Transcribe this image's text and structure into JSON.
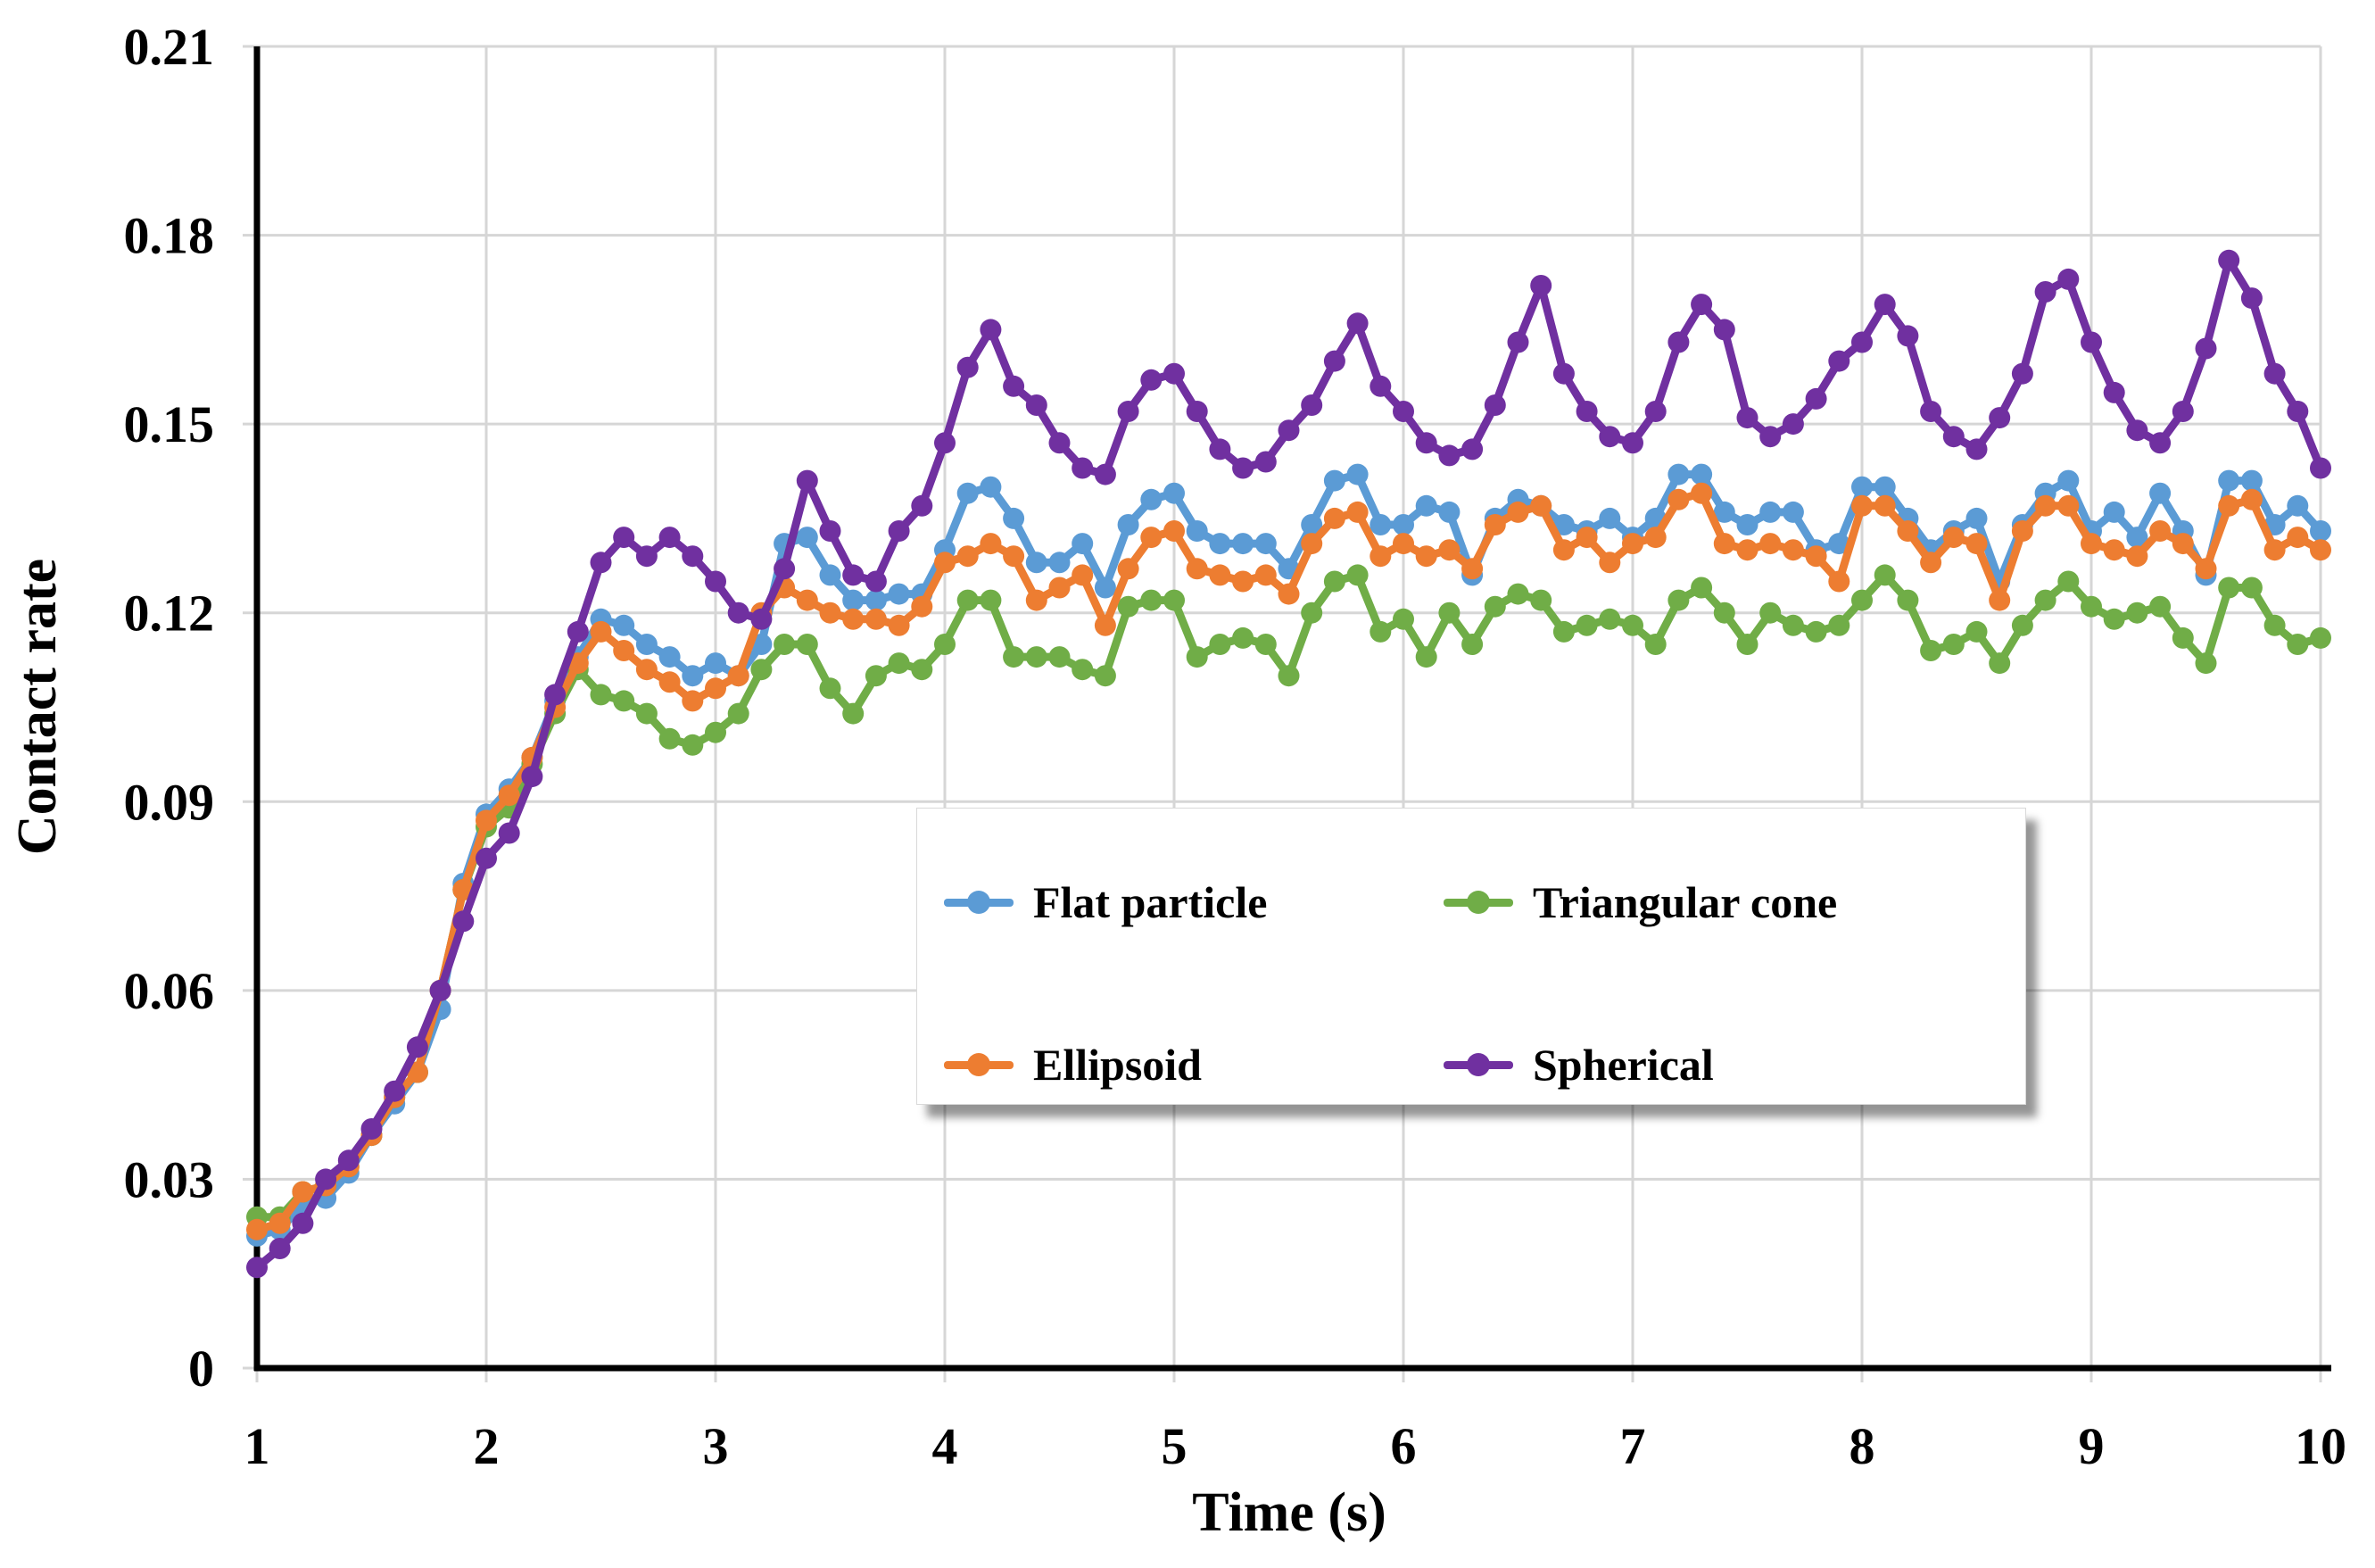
{
  "chart_data": {
    "type": "line",
    "title": "",
    "xlabel": "Time (s)",
    "ylabel": "Contact rate",
    "x_start": 1.0,
    "x_step": 0.1,
    "xlim": [
      1,
      10
    ],
    "ylim": [
      0,
      0.21
    ],
    "grid": true,
    "x_ticks": [
      "1",
      "2",
      "3",
      "4",
      "5",
      "6",
      "7",
      "8",
      "9",
      "10"
    ],
    "x_tick_values": [
      1,
      2,
      3,
      4,
      5,
      6,
      7,
      8,
      9,
      10
    ],
    "y_ticks": [
      "0",
      "0.03",
      "0.06",
      "0.09",
      "0.12",
      "0.15",
      "0.18",
      "0.21"
    ],
    "y_tick_values": [
      0,
      0.03,
      0.06,
      0.09,
      0.12,
      0.15,
      0.18,
      0.21
    ],
    "legend_position": "center-box",
    "colors": {
      "flat_particle": "#5B9BD5",
      "triangular_cone": "#70AD47",
      "ellipsoid": "#ED7D31",
      "spherical": "#7030A0",
      "gridline": "#D6D6D6",
      "axis": "#000000"
    },
    "series": [
      {
        "name": "Flat particle",
        "color": "#5B9BD5",
        "marker": "circle",
        "values": [
          0.021,
          0.022,
          0.026,
          0.027,
          0.031,
          0.037,
          0.042,
          0.047,
          0.057,
          0.077,
          0.088,
          0.092,
          0.097,
          0.106,
          0.113,
          0.119,
          0.118,
          0.115,
          0.113,
          0.11,
          0.112,
          0.11,
          0.115,
          0.131,
          0.132,
          0.126,
          0.122,
          0.122,
          0.123,
          0.123,
          0.13,
          0.139,
          0.14,
          0.135,
          0.128,
          0.128,
          0.131,
          0.124,
          0.134,
          0.138,
          0.139,
          0.133,
          0.131,
          0.131,
          0.131,
          0.127,
          0.134,
          0.141,
          0.142,
          0.134,
          0.134,
          0.137,
          0.136,
          0.126,
          0.135,
          0.138,
          0.137,
          0.134,
          0.133,
          0.135,
          0.132,
          0.135,
          0.142,
          0.142,
          0.136,
          0.134,
          0.136,
          0.136,
          0.13,
          0.131,
          0.14,
          0.14,
          0.135,
          0.13,
          0.133,
          0.135,
          0.125,
          0.134,
          0.139,
          0.141,
          0.133,
          0.136,
          0.132,
          0.139,
          0.133,
          0.126,
          0.141,
          0.141,
          0.134,
          0.137,
          0.133
        ]
      },
      {
        "name": "Triangular cone",
        "color": "#70AD47",
        "marker": "circle",
        "values": [
          0.024,
          0.024,
          0.028,
          0.029,
          0.032,
          0.037,
          0.043,
          0.047,
          0.06,
          0.076,
          0.086,
          0.089,
          0.096,
          0.104,
          0.111,
          0.107,
          0.106,
          0.104,
          0.1,
          0.099,
          0.101,
          0.104,
          0.111,
          0.115,
          0.115,
          0.108,
          0.104,
          0.11,
          0.112,
          0.111,
          0.115,
          0.122,
          0.122,
          0.113,
          0.113,
          0.113,
          0.111,
          0.11,
          0.121,
          0.122,
          0.122,
          0.113,
          0.115,
          0.116,
          0.115,
          0.11,
          0.12,
          0.125,
          0.126,
          0.117,
          0.119,
          0.113,
          0.12,
          0.115,
          0.121,
          0.123,
          0.122,
          0.117,
          0.118,
          0.119,
          0.118,
          0.115,
          0.122,
          0.124,
          0.12,
          0.115,
          0.12,
          0.118,
          0.117,
          0.118,
          0.122,
          0.126,
          0.122,
          0.114,
          0.115,
          0.117,
          0.112,
          0.118,
          0.122,
          0.125,
          0.121,
          0.119,
          0.12,
          0.121,
          0.116,
          0.112,
          0.124,
          0.124,
          0.118,
          0.115,
          0.116
        ]
      },
      {
        "name": "Ellipsoid",
        "color": "#ED7D31",
        "marker": "circle",
        "values": [
          0.022,
          0.023,
          0.028,
          0.029,
          0.032,
          0.037,
          0.043,
          0.047,
          0.06,
          0.076,
          0.087,
          0.091,
          0.097,
          0.105,
          0.112,
          0.117,
          0.114,
          0.111,
          0.109,
          0.106,
          0.108,
          0.11,
          0.12,
          0.124,
          0.122,
          0.12,
          0.119,
          0.119,
          0.118,
          0.121,
          0.128,
          0.129,
          0.131,
          0.129,
          0.122,
          0.124,
          0.126,
          0.118,
          0.127,
          0.132,
          0.133,
          0.127,
          0.126,
          0.125,
          0.126,
          0.123,
          0.131,
          0.135,
          0.136,
          0.129,
          0.131,
          0.129,
          0.13,
          0.127,
          0.134,
          0.136,
          0.137,
          0.13,
          0.132,
          0.128,
          0.131,
          0.132,
          0.138,
          0.139,
          0.131,
          0.13,
          0.131,
          0.13,
          0.129,
          0.125,
          0.137,
          0.137,
          0.133,
          0.128,
          0.132,
          0.131,
          0.122,
          0.133,
          0.137,
          0.137,
          0.131,
          0.13,
          0.129,
          0.133,
          0.131,
          0.127,
          0.137,
          0.138,
          0.13,
          0.132,
          0.13
        ]
      },
      {
        "name": "Spherical",
        "color": "#7030A0",
        "marker": "circle",
        "values": [
          0.016,
          0.019,
          0.023,
          0.03,
          0.033,
          0.038,
          0.044,
          0.051,
          0.06,
          0.071,
          0.081,
          0.085,
          0.094,
          0.107,
          0.117,
          0.128,
          0.132,
          0.129,
          0.132,
          0.129,
          0.125,
          0.12,
          0.119,
          0.127,
          0.141,
          0.133,
          0.126,
          0.125,
          0.133,
          0.137,
          0.147,
          0.159,
          0.165,
          0.156,
          0.153,
          0.147,
          0.143,
          0.142,
          0.152,
          0.157,
          0.158,
          0.152,
          0.146,
          0.143,
          0.144,
          0.149,
          0.153,
          0.16,
          0.166,
          0.156,
          0.152,
          0.147,
          0.145,
          0.146,
          0.153,
          0.163,
          0.172,
          0.158,
          0.152,
          0.148,
          0.147,
          0.152,
          0.163,
          0.169,
          0.165,
          0.151,
          0.148,
          0.15,
          0.154,
          0.16,
          0.163,
          0.169,
          0.164,
          0.152,
          0.148,
          0.146,
          0.151,
          0.158,
          0.171,
          0.173,
          0.163,
          0.155,
          0.149,
          0.147,
          0.152,
          0.162,
          0.176,
          0.17,
          0.158,
          0.152,
          0.143
        ]
      }
    ]
  }
}
